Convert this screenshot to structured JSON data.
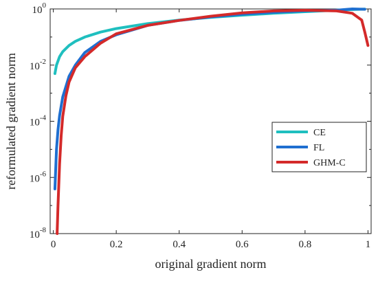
{
  "chart_data": {
    "type": "line",
    "title": "",
    "xlabel": "original gradient norm",
    "ylabel": "reformulated gradient norm",
    "xlim": [
      -0.01,
      1.01
    ],
    "ylim": [
      1e-08,
      1
    ],
    "y_scale": "log",
    "grid": false,
    "legend_position": "right",
    "x_ticks": [
      "0",
      "0.2",
      "0.4",
      "0.6",
      "0.8",
      "1"
    ],
    "y_ticks": [
      {
        "base": "10",
        "exp": "0"
      },
      {
        "base": "10",
        "exp": "-2"
      },
      {
        "base": "10",
        "exp": "-4"
      },
      {
        "base": "10",
        "exp": "-6"
      },
      {
        "base": "10",
        "exp": "-8"
      }
    ],
    "series": [
      {
        "name": "CE",
        "color": "#1fbfbf",
        "x": [
          0.005,
          0.01,
          0.02,
          0.03,
          0.05,
          0.07,
          0.1,
          0.15,
          0.2,
          0.3,
          0.4,
          0.5,
          0.6,
          0.7,
          0.8,
          0.9,
          0.95,
          0.99
        ],
        "y": [
          0.005,
          0.01,
          0.02,
          0.03,
          0.05,
          0.07,
          0.1,
          0.15,
          0.2,
          0.3,
          0.4,
          0.5,
          0.6,
          0.7,
          0.8,
          0.9,
          0.95,
          0.99
        ]
      },
      {
        "name": "FL",
        "color": "#1f6fd0",
        "x": [
          0.005,
          0.01,
          0.015,
          0.02,
          0.03,
          0.05,
          0.07,
          0.1,
          0.15,
          0.2,
          0.3,
          0.4,
          0.5,
          0.6,
          0.7,
          0.8,
          0.9,
          0.95,
          0.99
        ],
        "y": [
          3.9e-07,
          1e-05,
          5e-05,
          0.00016,
          0.00074,
          0.004,
          0.01,
          0.028,
          0.07,
          0.12,
          0.26,
          0.39,
          0.52,
          0.65,
          0.76,
          0.86,
          0.9,
          1.0,
          0.97
        ]
      },
      {
        "name": "GHM-C",
        "color": "#d42a2a",
        "x": [
          0.012,
          0.015,
          0.02,
          0.025,
          0.03,
          0.04,
          0.05,
          0.07,
          0.1,
          0.15,
          0.2,
          0.3,
          0.4,
          0.5,
          0.6,
          0.7,
          0.8,
          0.9,
          0.95,
          0.98,
          0.99,
          1.0
        ],
        "y": [
          1e-08,
          1e-07,
          3e-06,
          3e-05,
          0.00015,
          0.0008,
          0.0025,
          0.008,
          0.02,
          0.06,
          0.13,
          0.26,
          0.39,
          0.55,
          0.72,
          0.85,
          0.9,
          0.85,
          0.7,
          0.4,
          0.15,
          0.05
        ]
      }
    ]
  }
}
